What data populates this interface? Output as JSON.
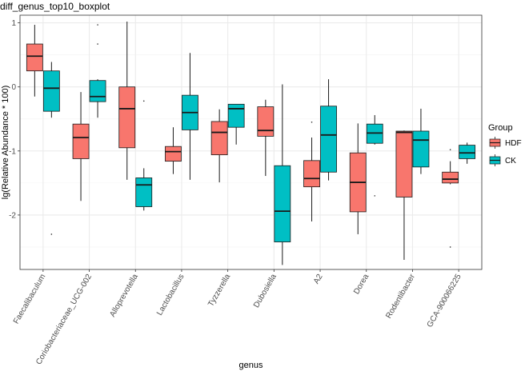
{
  "chart_data": {
    "type": "boxplot",
    "title": "diff_genus_top10_boxplot",
    "xlabel": "genus",
    "ylabel": "lg(Relative Abundance * 100)",
    "ylim": [
      -2.85,
      1.12
    ],
    "yticks": [
      1,
      0,
      -1,
      -2
    ],
    "ytick_labels": [
      "1",
      "0",
      "-1",
      "-2"
    ],
    "grid": true,
    "legend_title": "Group",
    "legend_position": "right",
    "categories": [
      "Faecalibaculum",
      "Coriobacteriaceae_UCG-002",
      "Alloprevotella",
      "Lactobacillus",
      "Tyzzerella",
      "Dubosiella",
      "A2",
      "Dorea",
      "Rodentibacter",
      "GCA-900066225"
    ],
    "series": [
      {
        "name": "HDF",
        "color": "#F8766D",
        "boxes": [
          {
            "whisker_low": -0.15,
            "q1": 0.25,
            "median": 0.48,
            "q3": 0.67,
            "whisker_high": 0.97,
            "outliers": []
          },
          {
            "whisker_low": -1.78,
            "q1": -1.12,
            "median": -0.79,
            "q3": -0.58,
            "whisker_high": -0.08,
            "outliers": []
          },
          {
            "whisker_low": -1.45,
            "q1": -0.95,
            "median": -0.34,
            "q3": 0.0,
            "whisker_high": 1.02,
            "outliers": []
          },
          {
            "whisker_low": -1.36,
            "q1": -1.16,
            "median": -1.01,
            "q3": -0.93,
            "whisker_high": -0.63,
            "outliers": []
          },
          {
            "whisker_low": -1.49,
            "q1": -1.06,
            "median": -0.71,
            "q3": -0.54,
            "whisker_high": -0.35,
            "outliers": []
          },
          {
            "whisker_low": -1.39,
            "q1": -0.77,
            "median": -0.68,
            "q3": -0.31,
            "whisker_high": -0.2,
            "outliers": []
          },
          {
            "whisker_low": -2.1,
            "q1": -1.56,
            "median": -1.43,
            "q3": -1.15,
            "whisker_high": -0.79,
            "outliers": [
              -0.55
            ]
          },
          {
            "whisker_low": -2.3,
            "q1": -1.95,
            "median": -1.49,
            "q3": -1.03,
            "whisker_high": -0.57,
            "outliers": []
          },
          {
            "whisker_low": -2.7,
            "q1": -1.72,
            "median": -0.71,
            "q3": -0.69,
            "whisker_high": -0.68,
            "outliers": []
          },
          {
            "whisker_low": -1.52,
            "q1": -1.5,
            "median": -1.44,
            "q3": -1.33,
            "whisker_high": -1.16,
            "outliers": [
              -0.98,
              -2.5
            ]
          }
        ]
      },
      {
        "name": "CK",
        "color": "#00BFC4",
        "boxes": [
          {
            "whisker_low": -0.48,
            "q1": -0.38,
            "median": -0.02,
            "q3": 0.25,
            "whisker_high": 0.39,
            "outliers": [
              -2.3
            ]
          },
          {
            "whisker_low": -0.48,
            "q1": -0.23,
            "median": -0.15,
            "q3": 0.1,
            "whisker_high": 0.12,
            "outliers": [
              0.97,
              0.67
            ]
          },
          {
            "whisker_low": -1.93,
            "q1": -1.87,
            "median": -1.53,
            "q3": -1.42,
            "whisker_high": -1.27,
            "outliers": [
              -0.22
            ]
          },
          {
            "whisker_low": -1.45,
            "q1": -0.67,
            "median": -0.4,
            "q3": -0.13,
            "whisker_high": 0.53,
            "outliers": []
          },
          {
            "whisker_low": -0.9,
            "q1": -0.63,
            "median": -0.34,
            "q3": -0.27,
            "whisker_high": -0.27,
            "outliers": []
          },
          {
            "whisker_low": -2.78,
            "q1": -2.42,
            "median": -1.94,
            "q3": -1.23,
            "whisker_high": 0.04,
            "outliers": []
          },
          {
            "whisker_low": -1.46,
            "q1": -1.33,
            "median": -0.75,
            "q3": -0.3,
            "whisker_high": 0.12,
            "outliers": []
          },
          {
            "whisker_low": -0.9,
            "q1": -0.88,
            "median": -0.72,
            "q3": -0.58,
            "whisker_high": -0.44,
            "outliers": [
              -1.7
            ]
          },
          {
            "whisker_low": -1.36,
            "q1": -1.25,
            "median": -0.83,
            "q3": -0.69,
            "whisker_high": -0.34,
            "outliers": []
          },
          {
            "whisker_low": -1.2,
            "q1": -1.12,
            "median": -1.03,
            "q3": -0.91,
            "whisker_high": -0.87,
            "outliers": []
          }
        ]
      }
    ]
  }
}
